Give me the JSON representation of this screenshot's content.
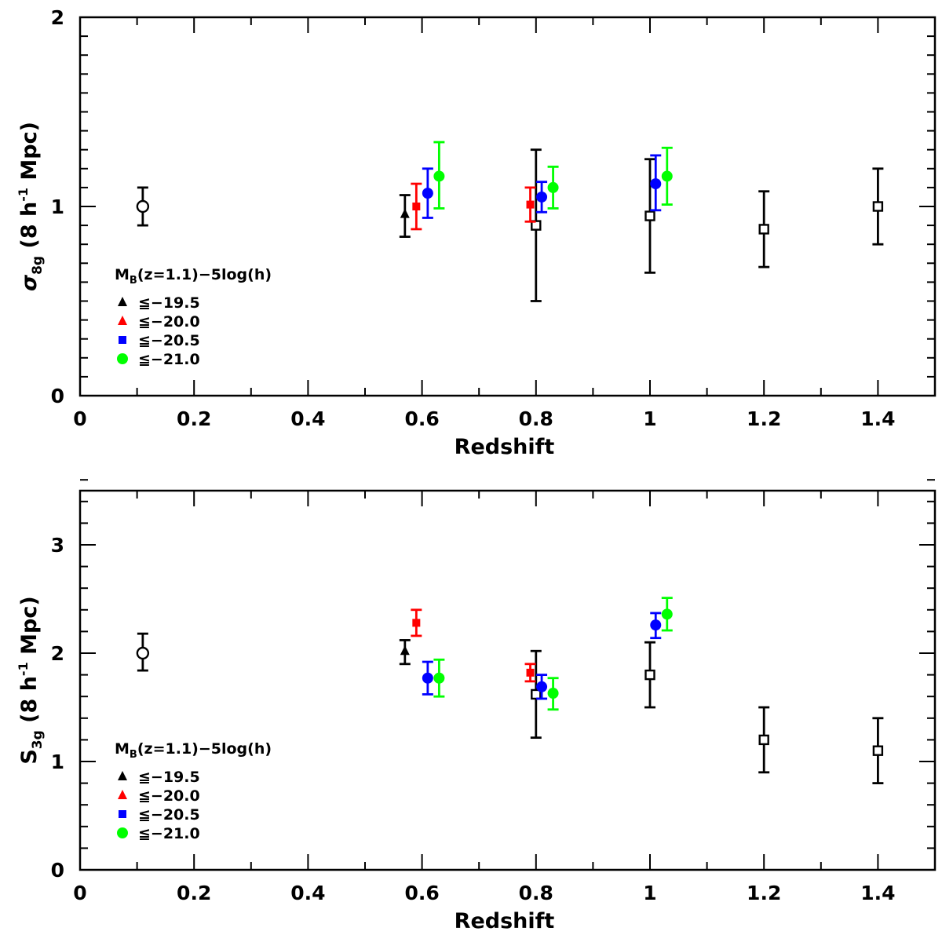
{
  "chart_data": [
    {
      "type": "scatter",
      "xlabel": "Redshift",
      "ylabel": {
        "symbol": "σ",
        "sub": "8g",
        "unit_pre": " (8 h",
        "sup": "-1",
        "unit_post": " Mpc)"
      },
      "xlim": [
        0,
        1.5
      ],
      "ylim": [
        0,
        2
      ],
      "xticks": [
        0,
        0.2,
        0.4,
        0.6,
        0.8,
        1,
        1.2,
        1.4
      ],
      "xtick_labels": [
        "0",
        "0.2",
        "0.4",
        "0.6",
        "0.8",
        "1",
        "1.2",
        "1.4"
      ],
      "yticks": [
        0,
        1,
        2
      ],
      "ytick_labels": [
        "0",
        "1",
        "2"
      ],
      "legend": {
        "title": {
          "main": "M",
          "sub": "B",
          "rest": "(z=1.1)−5log(h)"
        },
        "placement": "lower-left",
        "entries": [
          {
            "label": "≦−19.5",
            "color": "#000000",
            "marker": "triangle"
          },
          {
            "label": "≦−20.0",
            "color": "#ff0000",
            "marker": "triangle"
          },
          {
            "label": "≦−20.5",
            "color": "#0000ff",
            "marker": "square"
          },
          {
            "label": "≦−21.0",
            "color": "#00ff00",
            "marker": "circle"
          }
        ]
      },
      "series": [
        {
          "color": "#000000",
          "marker": "open-circle",
          "points": [
            {
              "x": 0.11,
              "y": 1.0,
              "lo": 0.9,
              "hi": 1.1
            }
          ]
        },
        {
          "color": "#000000",
          "marker": "open-square",
          "points": [
            {
              "x": 0.8,
              "y": 0.9,
              "lo": 0.5,
              "hi": 1.3
            },
            {
              "x": 1.0,
              "y": 0.95,
              "lo": 0.65,
              "hi": 1.25
            },
            {
              "x": 1.2,
              "y": 0.88,
              "lo": 0.68,
              "hi": 1.08
            },
            {
              "x": 1.4,
              "y": 1.0,
              "lo": 0.8,
              "hi": 1.2
            }
          ]
        },
        {
          "color": "#000000",
          "marker": "triangle",
          "points": [
            {
              "x": 0.57,
              "y": 0.96,
              "lo": 0.84,
              "hi": 1.06
            }
          ]
        },
        {
          "color": "#ff0000",
          "marker": "square",
          "points": [
            {
              "x": 0.59,
              "y": 1.0,
              "lo": 0.88,
              "hi": 1.12
            },
            {
              "x": 0.79,
              "y": 1.01,
              "lo": 0.92,
              "hi": 1.1
            }
          ]
        },
        {
          "color": "#0000ff",
          "marker": "circle",
          "points": [
            {
              "x": 0.61,
              "y": 1.07,
              "lo": 0.94,
              "hi": 1.2
            },
            {
              "x": 0.81,
              "y": 1.05,
              "lo": 0.97,
              "hi": 1.13
            },
            {
              "x": 1.01,
              "y": 1.12,
              "lo": 0.98,
              "hi": 1.27
            }
          ]
        },
        {
          "color": "#00ff00",
          "marker": "circle",
          "points": [
            {
              "x": 0.63,
              "y": 1.16,
              "lo": 0.99,
              "hi": 1.34
            },
            {
              "x": 0.83,
              "y": 1.1,
              "lo": 0.99,
              "hi": 1.21
            },
            {
              "x": 1.03,
              "y": 1.16,
              "lo": 1.01,
              "hi": 1.31
            }
          ]
        }
      ]
    },
    {
      "type": "scatter",
      "xlabel": "Redshift",
      "ylabel": {
        "symbol": "S",
        "sub": "3g",
        "unit_pre": " (8 h",
        "sup": "-1",
        "unit_post": " Mpc)"
      },
      "xlim": [
        0,
        1.5
      ],
      "ylim": [
        0,
        3.5
      ],
      "xticks": [
        0,
        0.2,
        0.4,
        0.6,
        0.8,
        1,
        1.2,
        1.4
      ],
      "xtick_labels": [
        "0",
        "0.2",
        "0.4",
        "0.6",
        "0.8",
        "1",
        "1.2",
        "1.4"
      ],
      "yticks": [
        0,
        1,
        2,
        3
      ],
      "ytick_labels": [
        "0",
        "1",
        "2",
        "3"
      ],
      "legend": {
        "title": {
          "main": "M",
          "sub": "B",
          "rest": "(z=1.1)−5log(h)"
        },
        "placement": "lower-left",
        "entries": [
          {
            "label": "≦−19.5",
            "color": "#000000",
            "marker": "triangle"
          },
          {
            "label": "≦−20.0",
            "color": "#ff0000",
            "marker": "triangle"
          },
          {
            "label": "≦−20.5",
            "color": "#0000ff",
            "marker": "square"
          },
          {
            "label": "≦−21.0",
            "color": "#00ff00",
            "marker": "circle"
          }
        ]
      },
      "series": [
        {
          "color": "#000000",
          "marker": "open-circle",
          "points": [
            {
              "x": 0.11,
              "y": 2.0,
              "lo": 1.84,
              "hi": 2.18
            }
          ]
        },
        {
          "color": "#000000",
          "marker": "open-square",
          "points": [
            {
              "x": 0.8,
              "y": 1.62,
              "lo": 1.22,
              "hi": 2.02
            },
            {
              "x": 1.0,
              "y": 1.8,
              "lo": 1.5,
              "hi": 2.1
            },
            {
              "x": 1.2,
              "y": 1.2,
              "lo": 0.9,
              "hi": 1.5
            },
            {
              "x": 1.4,
              "y": 1.1,
              "lo": 0.8,
              "hi": 1.4
            }
          ]
        },
        {
          "color": "#000000",
          "marker": "triangle",
          "points": [
            {
              "x": 0.57,
              "y": 2.02,
              "lo": 1.9,
              "hi": 2.12
            }
          ]
        },
        {
          "color": "#ff0000",
          "marker": "square",
          "points": [
            {
              "x": 0.59,
              "y": 2.28,
              "lo": 2.16,
              "hi": 2.4
            },
            {
              "x": 0.79,
              "y": 1.82,
              "lo": 1.74,
              "hi": 1.9
            }
          ]
        },
        {
          "color": "#0000ff",
          "marker": "circle",
          "points": [
            {
              "x": 0.61,
              "y": 1.77,
              "lo": 1.62,
              "hi": 1.92
            },
            {
              "x": 0.81,
              "y": 1.69,
              "lo": 1.58,
              "hi": 1.8
            },
            {
              "x": 1.01,
              "y": 2.26,
              "lo": 2.14,
              "hi": 2.37
            }
          ]
        },
        {
          "color": "#00ff00",
          "marker": "circle",
          "points": [
            {
              "x": 0.63,
              "y": 1.77,
              "lo": 1.6,
              "hi": 1.94
            },
            {
              "x": 0.83,
              "y": 1.63,
              "lo": 1.48,
              "hi": 1.77
            },
            {
              "x": 1.03,
              "y": 2.36,
              "lo": 2.21,
              "hi": 2.51
            }
          ]
        }
      ]
    }
  ]
}
